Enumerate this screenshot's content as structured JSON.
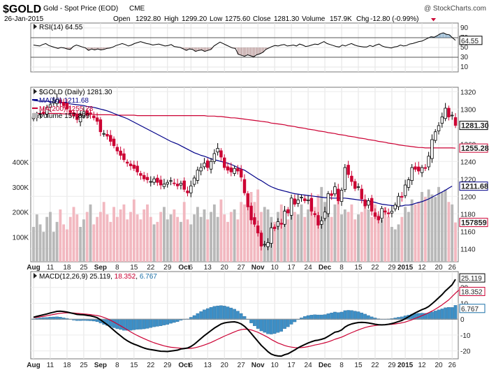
{
  "header": {
    "symbol": "$GOLD",
    "name": "Gold - Spot Price (EOD)",
    "exchange": "CME",
    "watermark": "@ StockCharts.com",
    "date": "26-Jan-2015",
    "open_label": "Open",
    "open": "1292.80",
    "high_label": "High",
    "high": "1299.20",
    "low_label": "Low",
    "low": "1275.60",
    "close_label": "Close",
    "close": "1281.30",
    "volume_label": "Volume",
    "volume": "157.9K",
    "chg_label": "Chg",
    "chg": "-12.80 (-0.99%)"
  },
  "rsi": {
    "legend": "RSI(14) 64.55",
    "value": "64.55",
    "ticks": [
      "90",
      "70",
      "50",
      "30",
      "10"
    ],
    "levels": [
      30,
      70
    ],
    "values": [
      55,
      54,
      53,
      56,
      58,
      54,
      52,
      50,
      48,
      50,
      49,
      47,
      46,
      52,
      55,
      53,
      51,
      49,
      44,
      47,
      45,
      47,
      45,
      46,
      48,
      49,
      51,
      54,
      56,
      58,
      56,
      53,
      55,
      58,
      60,
      62,
      60,
      58,
      57,
      55,
      56,
      57,
      55,
      53,
      54,
      56,
      52,
      51,
      50,
      47,
      44,
      47,
      46,
      42,
      44,
      45,
      42,
      44,
      46,
      53,
      57,
      61,
      58,
      55,
      52,
      49,
      48,
      36,
      34,
      32,
      35,
      33,
      31,
      35,
      37,
      40,
      46,
      49,
      52,
      54,
      53,
      55,
      56,
      53,
      54,
      55,
      53,
      57,
      55,
      52,
      53,
      55,
      57,
      56,
      59,
      62,
      58,
      56,
      54,
      52,
      51,
      55,
      53,
      56,
      58,
      55,
      53,
      52,
      51,
      51,
      54,
      52,
      55,
      57,
      53,
      51,
      50,
      49,
      51,
      52,
      55,
      53,
      54,
      57,
      58,
      60,
      62,
      63,
      66,
      69,
      72,
      71,
      74,
      78,
      80,
      77,
      76,
      70,
      64.55
    ]
  },
  "price": {
    "legend_main": "$GOLD (Daily) 1281.30",
    "legend_ma50": "MA(50) 1211.68",
    "legend_ma200": "MA(200) 1255.28",
    "legend_volume": "Volume 157,859",
    "ticks": [
      "1320",
      "1300",
      "1280",
      "1260",
      "1240",
      "1220",
      "1200",
      "1180",
      "1160",
      "1140"
    ],
    "vol_ticks": [
      "400K",
      "300K",
      "200K",
      "100K"
    ],
    "boxes": [
      {
        "label": "1281.30",
        "value": 1281.3,
        "color": "#000000",
        "fill": "#ffffff"
      },
      {
        "label": "1255.28",
        "value": 1255.28,
        "color": "#cc0033",
        "fill": "#ffffff"
      },
      {
        "label": "1211.68",
        "value": 1211.68,
        "color": "#000088",
        "fill": "#ffffff"
      },
      {
        "label": "157859",
        "value": 157859,
        "color": "#cc0033",
        "fill": "#ffffff"
      }
    ]
  },
  "macd": {
    "legend_label": "MACD(12,26,9)",
    "legend_v1": "25.119",
    "legend_v2": "18.352",
    "legend_v3": "6.767",
    "ticks": [
      "20",
      "10",
      "0",
      "-10",
      "-20"
    ],
    "boxes": [
      {
        "label": "25.119",
        "value": 25.119,
        "color": "#000000",
        "fill": "#ffffff"
      },
      {
        "label": "18.352",
        "value": 18.352,
        "color": "#cc0033",
        "fill": "#ffffff"
      },
      {
        "label": "6.767",
        "value": 6.767,
        "color": "#1a6fa8",
        "fill": "#ffffff"
      }
    ]
  },
  "x_labels": [
    {
      "label": "Aug",
      "i": 0,
      "bold": true
    },
    {
      "label": "11",
      "i": 5
    },
    {
      "label": "18",
      "i": 10
    },
    {
      "label": "25",
      "i": 15
    },
    {
      "label": "Sep",
      "i": 20,
      "bold": true
    },
    {
      "label": "8",
      "i": 25
    },
    {
      "label": "15",
      "i": 30
    },
    {
      "label": "22",
      "i": 35
    },
    {
      "label": "29",
      "i": 40
    },
    {
      "label": "Oct",
      "i": 45,
      "bold": true
    },
    {
      "label": "6",
      "i": 47
    },
    {
      "label": "13",
      "i": 52
    },
    {
      "label": "20",
      "i": 57
    },
    {
      "label": "27",
      "i": 62
    },
    {
      "label": "Nov",
      "i": 67,
      "bold": true
    },
    {
      "label": "10",
      "i": 72
    },
    {
      "label": "17",
      "i": 77
    },
    {
      "label": "24",
      "i": 82
    },
    {
      "label": "Dec",
      "i": 87,
      "bold": true
    },
    {
      "label": "8",
      "i": 92
    },
    {
      "label": "15",
      "i": 97
    },
    {
      "label": "22",
      "i": 102
    },
    {
      "label": "29",
      "i": 107
    },
    {
      "label": "2015",
      "i": 111,
      "bold": true
    },
    {
      "label": "12",
      "i": 116
    },
    {
      "label": "20",
      "i": 121
    },
    {
      "label": "26",
      "i": 125
    }
  ],
  "chart_data": {
    "type": "line",
    "title": "$GOLD Gold - Spot Price (EOD) CME",
    "ylim_price": [
      1125,
      1325
    ],
    "ylim_rsi": [
      0,
      100
    ],
    "ylim_macd": [
      -25,
      30
    ],
    "ylim_volume": [
      0,
      700000
    ],
    "colors": {
      "up": "#000000",
      "down": "#cc0033",
      "ma50": "#000088",
      "ma200": "#cc0033",
      "vol_up": "#b8b8b8",
      "vol_down": "#f2b8c0",
      "hist": "#3d8fc6",
      "macd": "#000000",
      "signal": "#cc0033"
    },
    "series": [
      {
        "name": "Close",
        "values": [
          1291,
          1293,
          1294,
          1296,
          1302,
          1305,
          1309,
          1311,
          1307,
          1304,
          1300,
          1296,
          1292,
          1288,
          1293,
          1297,
          1293,
          1294,
          1290,
          1286,
          1274,
          1272,
          1269,
          1263,
          1258,
          1252,
          1247,
          1242,
          1238,
          1235,
          1232,
          1228,
          1224,
          1220,
          1219,
          1217,
          1220,
          1216,
          1213,
          1214,
          1216,
          1218,
          1215,
          1212,
          1215,
          1208,
          1204,
          1212,
          1221,
          1230,
          1233,
          1238,
          1233,
          1240,
          1249,
          1255,
          1245,
          1233,
          1230,
          1228,
          1232,
          1229,
          1222,
          1204,
          1188,
          1173,
          1168,
          1158,
          1143,
          1145,
          1147,
          1164,
          1163,
          1171,
          1168,
          1183,
          1181,
          1198,
          1191,
          1196,
          1199,
          1195,
          1196,
          1183,
          1179,
          1167,
          1172,
          1182,
          1203,
          1201,
          1211,
          1195,
          1207,
          1233,
          1225,
          1217,
          1209,
          1211,
          1197,
          1189,
          1195,
          1183,
          1177,
          1173,
          1186,
          1182,
          1180,
          1183,
          1190,
          1200,
          1199,
          1213,
          1219,
          1233,
          1231,
          1229,
          1233,
          1232,
          1246,
          1265,
          1274,
          1281,
          1291,
          1301,
          1291,
          1293,
          1281.3
        ]
      },
      {
        "name": "MA(50)",
        "values": [
          1310,
          1309.5,
          1309,
          1309,
          1309,
          1308.5,
          1308,
          1308,
          1307.5,
          1307,
          1307,
          1306,
          1305.5,
          1305,
          1304.5,
          1304,
          1303,
          1302.5,
          1302,
          1301,
          1300,
          1299,
          1298,
          1296.5,
          1295,
          1293.5,
          1292,
          1290.5,
          1289,
          1287,
          1285,
          1283,
          1281,
          1279,
          1277,
          1275,
          1273,
          1271,
          1269,
          1267,
          1265,
          1263,
          1261.5,
          1260,
          1258,
          1256,
          1254,
          1252,
          1250,
          1248.5,
          1247,
          1246,
          1244.5,
          1243,
          1242,
          1241,
          1240,
          1239,
          1238,
          1236.5,
          1235,
          1233,
          1231.5,
          1230,
          1227.5,
          1225,
          1222.5,
          1220,
          1218,
          1215.5,
          1213,
          1211,
          1209.5,
          1208,
          1207,
          1206,
          1205,
          1204,
          1203,
          1202.5,
          1202,
          1201.5,
          1201,
          1200.5,
          1200,
          1199.5,
          1199,
          1198.5,
          1198.5,
          1198,
          1198,
          1198,
          1198,
          1198,
          1197.5,
          1197,
          1196.5,
          1196,
          1195.5,
          1195,
          1194.5,
          1194,
          1193,
          1192,
          1191,
          1190.5,
          1190,
          1189.5,
          1189,
          1189,
          1189,
          1190,
          1190,
          1190.5,
          1192,
          1193,
          1194,
          1195.5,
          1197,
          1199,
          1201,
          1203,
          1205,
          1207,
          1209.5,
          1211.68
        ]
      },
      {
        "name": "MA(200)",
        "values": [
          1295,
          1295,
          1295,
          1295,
          1295,
          1295,
          1295,
          1295,
          1295,
          1294.5,
          1294.5,
          1294.5,
          1294.5,
          1294.5,
          1294,
          1294,
          1294,
          1294,
          1294,
          1293.5,
          1293.5,
          1293.5,
          1293.5,
          1293.5,
          1293,
          1293,
          1293,
          1293,
          1293,
          1293,
          1293,
          1292.5,
          1292.5,
          1292.5,
          1292.5,
          1292.5,
          1292.5,
          1292.5,
          1292.5,
          1292.5,
          1292.5,
          1292.5,
          1292.5,
          1292.5,
          1292.5,
          1292.5,
          1292.5,
          1292.5,
          1292.5,
          1292.5,
          1292.5,
          1292.5,
          1292,
          1292,
          1292,
          1291.5,
          1291.5,
          1291,
          1290.5,
          1290,
          1290,
          1289.5,
          1289,
          1288.5,
          1288,
          1287.5,
          1287,
          1286.5,
          1286,
          1285.5,
          1285,
          1284,
          1283.5,
          1283,
          1282.5,
          1282,
          1281,
          1280.5,
          1280,
          1279,
          1278.5,
          1278,
          1277,
          1276.5,
          1276,
          1275,
          1274.5,
          1274,
          1273,
          1272.5,
          1272,
          1271,
          1270.5,
          1270,
          1269,
          1268.5,
          1268,
          1267,
          1266.5,
          1266,
          1265,
          1264.5,
          1264,
          1263,
          1262.5,
          1262,
          1261,
          1260.5,
          1260,
          1259,
          1258.5,
          1258,
          1257.5,
          1257,
          1256.5,
          1256,
          1256,
          1255.5,
          1255.5,
          1255.5,
          1255.5,
          1255.5,
          1255.5,
          1255.5,
          1255.5,
          1255.5,
          1255.28
        ]
      },
      {
        "name": "Volume",
        "values": [
          140000,
          190000,
          150000,
          120000,
          180000,
          200000,
          120000,
          160000,
          210000,
          150000,
          130000,
          180000,
          220000,
          190000,
          140000,
          170000,
          200000,
          230000,
          150000,
          180000,
          200000,
          240000,
          190000,
          160000,
          220000,
          180000,
          210000,
          230000,
          170000,
          200000,
          250000,
          190000,
          170000,
          210000,
          230000,
          180000,
          150000,
          160000,
          200000,
          220000,
          170000,
          190000,
          210000,
          180000,
          160000,
          240000,
          170000,
          150000,
          190000,
          220000,
          180000,
          210000,
          170000,
          200000,
          230000,
          180000,
          250000,
          190000,
          160000,
          200000,
          210000,
          170000,
          240000,
          230000,
          260000,
          280000,
          240000,
          290000,
          200000,
          220000,
          210000,
          180000,
          160000,
          200000,
          230000,
          210000,
          170000,
          250000,
          200000,
          190000,
          230000,
          180000,
          210000,
          250000,
          220000,
          270000,
          300000,
          240000,
          210000,
          180000,
          230000,
          260000,
          190000,
          210000,
          200000,
          230000,
          170000,
          190000,
          200000,
          240000,
          210000,
          180000,
          230000,
          190000,
          170000,
          220000,
          180000,
          140000,
          130000,
          150000,
          180000,
          220000,
          200000,
          250000,
          230000,
          240000,
          280000,
          260000,
          290000,
          270000,
          260000,
          300000,
          280000,
          290000,
          240000,
          230000,
          157859
        ]
      },
      {
        "name": "MACD",
        "values": [
          1.2,
          1.8,
          2.3,
          2.8,
          3.3,
          3.9,
          4.4,
          4.9,
          5,
          4.8,
          4.5,
          4,
          3.5,
          3,
          2.8,
          2.7,
          2.4,
          2.1,
          1.6,
          0.9,
          -0.4,
          -2,
          -3.5,
          -5.2,
          -7,
          -8.8,
          -10.5,
          -12.2,
          -13.6,
          -14.8,
          -15.7,
          -16.5,
          -17.4,
          -18.2,
          -18.8,
          -19.2,
          -19.5,
          -19.9,
          -20.2,
          -20.3,
          -20.4,
          -20.1,
          -19.8,
          -19.5,
          -18.8,
          -18.5,
          -18.2,
          -17.2,
          -15.8,
          -14,
          -12.2,
          -10.4,
          -8.8,
          -7.2,
          -5.6,
          -4.3,
          -3.1,
          -2.4,
          -2,
          -1.8,
          -1.7,
          -2.1,
          -3,
          -4.5,
          -6.5,
          -9,
          -11.5,
          -14,
          -16.5,
          -18.5,
          -20.5,
          -22,
          -22.8,
          -23.2,
          -23.3,
          -22.4,
          -21.8,
          -20.6,
          -19.4,
          -18.1,
          -17,
          -16,
          -15,
          -14.2,
          -13.5,
          -13.2,
          -12.7,
          -12,
          -10.8,
          -9.5,
          -8.2,
          -7.8,
          -6.8,
          -5,
          -3.8,
          -3,
          -2.5,
          -2.1,
          -2,
          -2.1,
          -2.4,
          -2.8,
          -3.2,
          -3.5,
          -3.6,
          -3.5,
          -3.2,
          -2.8,
          -2.2,
          -1.5,
          -0.8,
          0.3,
          1.5,
          2.8,
          4,
          5,
          6,
          6.8,
          8,
          9.7,
          11.5,
          13.5,
          15.5,
          17.8,
          19.7,
          21.7,
          25.119
        ]
      },
      {
        "name": "Signal",
        "values": [
          1,
          1.2,
          1.5,
          1.8,
          2.2,
          2.6,
          3,
          3.4,
          3.7,
          3.9,
          4,
          4,
          3.9,
          3.7,
          3.5,
          3.3,
          3.1,
          2.9,
          2.6,
          2.3,
          1.8,
          1.1,
          0.3,
          -0.7,
          -1.8,
          -3,
          -4.2,
          -5.4,
          -6.7,
          -8,
          -9.2,
          -10.3,
          -11.3,
          -12.3,
          -13.2,
          -14.1,
          -14.9,
          -15.6,
          -16.2,
          -16.8,
          -17.3,
          -17.7,
          -17.9,
          -18.1,
          -18.3,
          -18.4,
          -18.4,
          -18.4,
          -18.1,
          -17.6,
          -17,
          -16.3,
          -15.5,
          -14.7,
          -13.7,
          -12.7,
          -11.7,
          -10.7,
          -9.8,
          -8.9,
          -8,
          -7.2,
          -6.6,
          -6.3,
          -6.4,
          -6.8,
          -7.5,
          -8.3,
          -9.3,
          -10.4,
          -11.5,
          -12.8,
          -13.9,
          -15,
          -15.8,
          -16.6,
          -17.2,
          -17.6,
          -17.9,
          -18,
          -17.9,
          -17.7,
          -17.3,
          -16.8,
          -16.3,
          -15.9,
          -15.4,
          -14.9,
          -14.3,
          -13.5,
          -12.7,
          -12,
          -11.3,
          -10.4,
          -9.4,
          -8.5,
          -7.6,
          -6.8,
          -6,
          -5.3,
          -4.7,
          -4.3,
          -4,
          -3.8,
          -3.6,
          -3.5,
          -3.4,
          -3.2,
          -3,
          -2.7,
          -2.3,
          -1.8,
          -1.1,
          -0.4,
          0.5,
          1.3,
          2.2,
          3.1,
          4.1,
          5.1,
          6.3,
          7.6,
          9,
          10.6,
          12.2,
          14.3,
          16.4,
          18.352
        ]
      }
    ]
  }
}
